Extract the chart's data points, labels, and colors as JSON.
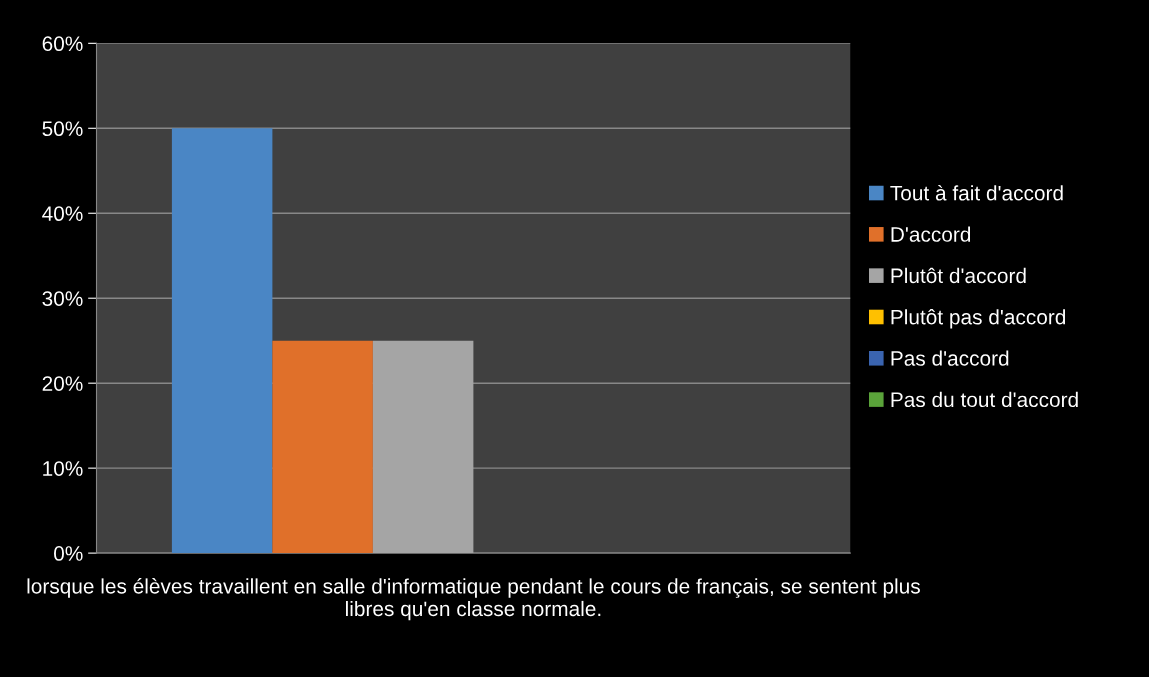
{
  "chart_data": {
    "type": "bar",
    "categories": [
      "lorsque les élèves travaillent en salle d'informatique pendant le cours de français, se sentent plus libres qu'en classe normale."
    ],
    "series": [
      {
        "name": "Tout à fait d'accord",
        "color": "#4a86c5",
        "values": [
          50
        ]
      },
      {
        "name": "D'accord",
        "color": "#e0702a",
        "values": [
          25
        ]
      },
      {
        "name": "Plutôt d'accord",
        "color": "#a5a5a5",
        "values": [
          25
        ]
      },
      {
        "name": "Plutôt pas d'accord",
        "color": "#ffc000",
        "values": [
          0
        ]
      },
      {
        "name": "Pas d'accord",
        "color": "#3a64b0",
        "values": [
          0
        ]
      },
      {
        "name": "Pas du tout d'accord",
        "color": "#5aa33a",
        "values": [
          0
        ]
      }
    ],
    "ylim": [
      0,
      60
    ],
    "yticks": [
      {
        "value": 0,
        "label": "0%"
      },
      {
        "value": 10,
        "label": "10%"
      },
      {
        "value": 20,
        "label": "20%"
      },
      {
        "value": 30,
        "label": "30%"
      },
      {
        "value": 40,
        "label": "40%"
      },
      {
        "value": 50,
        "label": "50%"
      },
      {
        "value": 60,
        "label": "60%"
      }
    ],
    "grid": "y",
    "legend": "right"
  }
}
